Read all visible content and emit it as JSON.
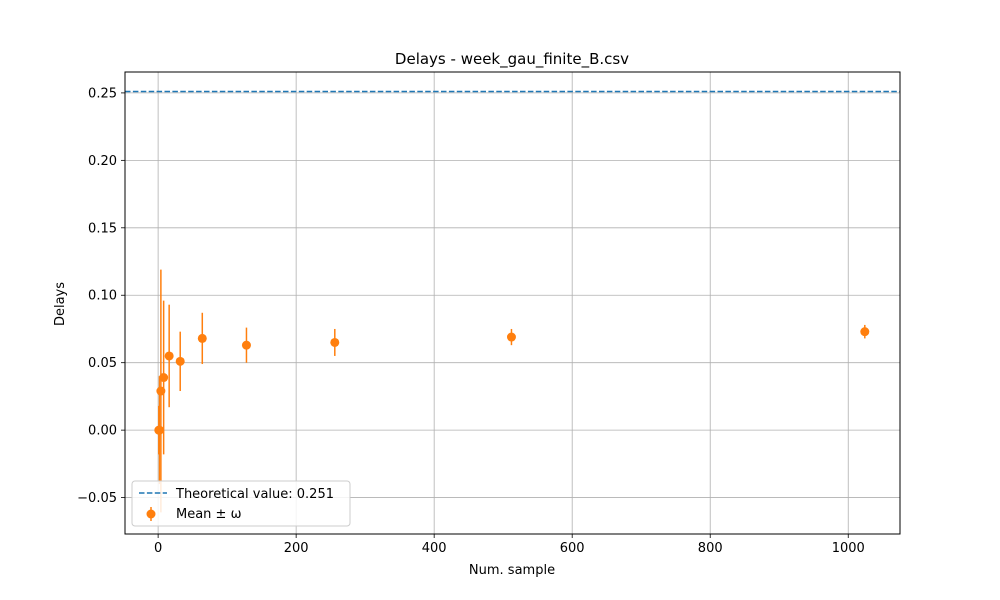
{
  "chart_data": {
    "type": "scatter",
    "title": "Delays - week_gau_finite_B.csv",
    "xlabel": "Num. sample",
    "ylabel": "Delays",
    "xlim": [
      -48,
      1075
    ],
    "ylim": [
      -0.077,
      0.2655
    ],
    "xticks": [
      0,
      200,
      400,
      600,
      800,
      1000
    ],
    "xtick_labels": [
      "0",
      "200",
      "400",
      "600",
      "800",
      "1000"
    ],
    "yticks": [
      -0.05,
      0.0,
      0.05,
      0.1,
      0.15,
      0.2,
      0.25
    ],
    "ytick_labels": [
      "−0.05",
      "0.00",
      "0.05",
      "0.10",
      "0.15",
      "0.20",
      "0.25"
    ],
    "grid": true,
    "legend_position": "lower-left",
    "reference_line": {
      "label": "Theoretical value: 0.251",
      "y": 0.251,
      "color": "#1f77b4",
      "style": "dashed"
    },
    "series": [
      {
        "name": "Mean ± ω",
        "color": "#ff7f0e",
        "x": [
          1,
          2,
          4,
          8,
          16,
          32,
          64,
          128,
          256,
          512,
          1024
        ],
        "y": [
          0.0,
          0.0,
          0.029,
          0.039,
          0.055,
          0.051,
          0.068,
          0.063,
          0.065,
          0.069,
          0.073
        ],
        "yerr": [
          0.018,
          0.04,
          0.09,
          0.057,
          0.038,
          0.022,
          0.019,
          0.013,
          0.01,
          0.006,
          0.005
        ]
      }
    ]
  }
}
